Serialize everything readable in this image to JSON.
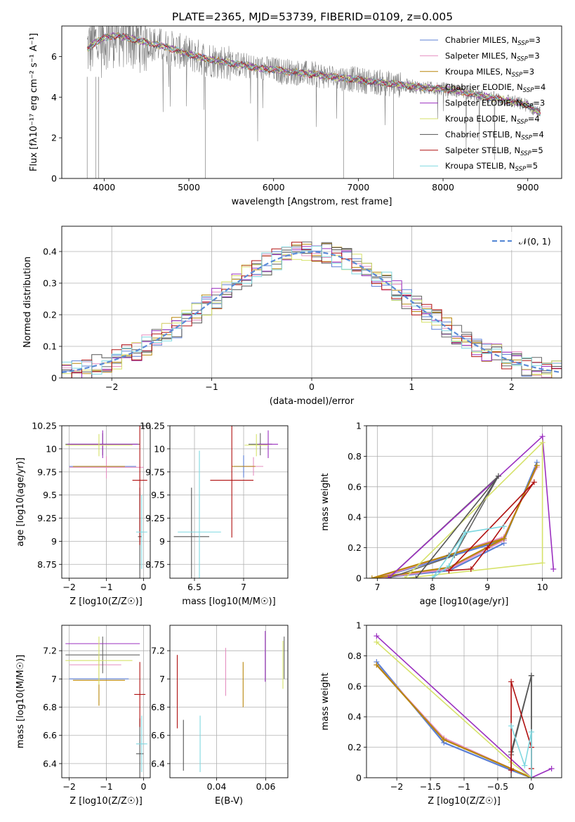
{
  "figure_title": "PLATE=2365, MJD=53739, FIBERID=0109, z=0.005",
  "colors": [
    "#5b7fd6",
    "#e58fc1",
    "#b8860b",
    "#666666",
    "#9b30c0",
    "#d6e26a",
    "#555555",
    "#b01010",
    "#7fd8e0"
  ],
  "chart_data": [
    {
      "id": "spectrum",
      "type": "line",
      "title": "PLATE=2365, MJD=53739, FIBERID=0109, z=0.005",
      "xlabel": "wavelength [Angstrom, rest frame]",
      "ylabel": "Flux [fλ10⁻¹⁷ erg cm⁻² s⁻¹ A⁻¹]",
      "xlim": [
        3500,
        9400
      ],
      "ylim": [
        0,
        7.5
      ],
      "xticks": [
        4000,
        5000,
        6000,
        7000,
        8000,
        9000
      ],
      "yticks": [
        0,
        2,
        4,
        6
      ],
      "grid": false,
      "legend_position": "top-right",
      "data_continuum": {
        "x": [
          3800,
          3900,
          4000,
          4100,
          4200,
          4400,
          4600,
          4800,
          5000,
          5200,
          5400,
          5600,
          5800,
          6000,
          6200,
          6400,
          6600,
          6800,
          7000,
          7200,
          7400,
          7600,
          7800,
          8000,
          8200,
          8400,
          8600,
          8800,
          9000,
          9150
        ],
        "y": [
          6.4,
          6.7,
          6.9,
          7.0,
          7.0,
          6.8,
          6.6,
          6.4,
          6.1,
          5.9,
          5.75,
          5.6,
          5.45,
          5.35,
          5.25,
          5.15,
          5.05,
          4.95,
          4.85,
          4.75,
          4.65,
          4.55,
          4.45,
          4.4,
          4.3,
          4.1,
          3.95,
          3.8,
          3.6,
          3.2
        ]
      },
      "series": [
        {
          "name": "Chabrier MILES, N_SSP=3"
        },
        {
          "name": "Salpeter MILES, N_SSP=3"
        },
        {
          "name": "Kroupa MILES, N_SSP=3"
        },
        {
          "name": "Chabrier ELODIE, N_SSP=4"
        },
        {
          "name": "Salpeter ELODIE, N_SSP=3"
        },
        {
          "name": "Kroupa ELODIE, N_SSP=4"
        },
        {
          "name": "Chabrier STELIB, N_SSP=4"
        },
        {
          "name": "Salpeter STELIB, N_SSP=5"
        },
        {
          "name": "Kroupa STELIB, N_SSP=5"
        }
      ]
    },
    {
      "id": "residuals",
      "type": "line",
      "xlabel": "(data-model)/error",
      "ylabel": "Normed distribution",
      "xlim": [
        -2.5,
        2.5
      ],
      "ylim": [
        0,
        0.48
      ],
      "xticks": [
        -2,
        -1,
        0,
        1,
        2
      ],
      "yticks": [
        0.0,
        0.1,
        0.2,
        0.3,
        0.4
      ],
      "grid": true,
      "legend_position": "top-right",
      "gaussian_label": "𝒩(0, 1)",
      "bin_width": 0.1
    },
    {
      "id": "age_vs_Z",
      "type": "scatter",
      "xlabel": "Z [log10(Z/Z☉)]",
      "ylabel": "age  [log10(age/yr)]",
      "xlim": [
        -2.2,
        0.18
      ],
      "ylim": [
        8.6,
        10.25
      ],
      "xticks": [
        -2,
        -1,
        0
      ],
      "yticks": [
        8.75,
        9.0,
        9.25,
        9.5,
        9.75,
        10.0,
        10.25
      ],
      "grid": true,
      "points": [
        {
          "x": -1.1,
          "xerr": 0.9,
          "y": 9.81,
          "yerr": 0.0,
          "c": 0
        },
        {
          "x": -1.0,
          "xerr": 1.0,
          "y": 9.8,
          "yerr": 0.12,
          "c": 1
        },
        {
          "x": -1.2,
          "xerr": 0.7,
          "y": 9.81,
          "yerr": 0.0,
          "c": 2
        },
        {
          "x": -1.1,
          "xerr": 1.0,
          "y": 10.05,
          "yerr": 0.12,
          "c": 3
        },
        {
          "x": -1.1,
          "xerr": 0.95,
          "y": 10.05,
          "yerr": 0.15,
          "c": 4
        },
        {
          "x": -1.2,
          "xerr": 0.9,
          "y": 10.04,
          "yerr": 0.12,
          "c": 5
        },
        {
          "x": -0.1,
          "xerr": 0.05,
          "y": 9.05,
          "yerr": 0.53,
          "c": 6
        },
        {
          "x": -0.1,
          "xerr": 0.2,
          "y": 9.66,
          "yerr": 0.7,
          "c": 7
        },
        {
          "x": -0.05,
          "xerr": 0.15,
          "y": 9.1,
          "yerr": 0.4,
          "c": 8
        }
      ]
    },
    {
      "id": "age_vs_mass",
      "type": "scatter",
      "xlabel": "mass [log10(M/M☉)]",
      "ylabel": "",
      "xlim": [
        6.25,
        7.45
      ],
      "ylim": [
        8.6,
        10.25
      ],
      "xticks": [
        6.5,
        7.0
      ],
      "yticks": [
        8.75,
        9.0,
        9.25,
        9.5,
        9.75,
        10.0,
        10.25
      ],
      "grid": true,
      "points": [
        {
          "x": 7.0,
          "xerr": 0.1,
          "y": 9.81,
          "yerr": 0.12,
          "c": 0
        },
        {
          "x": 7.1,
          "xerr": 0.1,
          "y": 9.81,
          "yerr": 0.1,
          "c": 1
        },
        {
          "x": 7.0,
          "xerr": 0.12,
          "y": 9.81,
          "yerr": 0.0,
          "c": 2
        },
        {
          "x": 7.17,
          "xerr": 0.12,
          "y": 10.05,
          "yerr": 0.12,
          "c": 3
        },
        {
          "x": 7.25,
          "xerr": 0.1,
          "y": 10.05,
          "yerr": 0.15,
          "c": 4
        },
        {
          "x": 7.13,
          "xerr": 0.12,
          "y": 10.04,
          "yerr": 0.12,
          "c": 5
        },
        {
          "x": 6.47,
          "xerr": 0.18,
          "y": 9.05,
          "yerr": 0.53,
          "c": 6
        },
        {
          "x": 6.88,
          "xerr": 0.22,
          "y": 9.66,
          "yerr": 0.62,
          "c": 7
        },
        {
          "x": 6.55,
          "xerr": 0.22,
          "y": 9.1,
          "yerr": 0.88,
          "c": 8
        }
      ]
    },
    {
      "id": "mass_weight_vs_age",
      "type": "line",
      "xlabel": "age  [log10(age/yr)]",
      "ylabel": "mass weight",
      "xlim": [
        6.8,
        10.35
      ],
      "ylim": [
        0,
        1.0
      ],
      "xticks": [
        7,
        8,
        9,
        10
      ],
      "yticks": [
        0.0,
        0.2,
        0.4,
        0.6,
        0.8,
        1.0
      ],
      "grid": true,
      "series": [
        {
          "c": 0,
          "x": [
            9.3,
            8.3,
            7.0,
            9.3,
            9.9
          ],
          "y": [
            0.23,
            0.05,
            0.0,
            0.25,
            0.76
          ]
        },
        {
          "c": 1,
          "x": [
            9.3,
            8.3,
            7.0,
            9.3,
            9.9
          ],
          "y": [
            0.25,
            0.06,
            0.0,
            0.27,
            0.73
          ]
        },
        {
          "c": 2,
          "x": [
            9.3,
            8.3,
            6.9,
            9.3,
            9.9
          ],
          "y": [
            0.26,
            0.07,
            0.0,
            0.26,
            0.74
          ]
        },
        {
          "c": 3,
          "x": [
            7.2,
            9.2,
            8.4,
            7.2
          ],
          "y": [
            0.0,
            0.67,
            0.15,
            0.0
          ]
        },
        {
          "c": 4,
          "x": [
            7.2,
            10.0,
            10.2
          ],
          "y": [
            0.0,
            0.93,
            0.06
          ]
        },
        {
          "c": 5,
          "x": [
            7.5,
            10.0,
            10.0,
            7.5
          ],
          "y": [
            0.0,
            0.89,
            0.1,
            0.0
          ]
        },
        {
          "c": 6,
          "x": [
            7.7,
            9.2,
            8.3
          ],
          "y": [
            0.0,
            0.67,
            0.15
          ]
        },
        {
          "c": 7,
          "x": [
            8.3,
            8.7,
            9.0,
            9.85,
            8.3
          ],
          "y": [
            0.05,
            0.06,
            0.2,
            0.63,
            0.05
          ]
        },
        {
          "c": 8,
          "x": [
            8.0,
            8.3,
            8.6,
            9.3,
            8.6,
            8.0
          ],
          "y": [
            0.0,
            0.08,
            0.3,
            0.34,
            0.3,
            0.0
          ]
        }
      ]
    },
    {
      "id": "mass_vs_Z",
      "type": "scatter",
      "xlabel": "Z [log10(Z/Z☉)]",
      "ylabel": "mass [log10(M/M☉)]",
      "xlim": [
        -2.2,
        0.18
      ],
      "ylim": [
        6.3,
        7.38
      ],
      "xticks": [
        -2,
        -1,
        0
      ],
      "yticks": [
        6.4,
        6.6,
        6.8,
        7.0,
        7.2
      ],
      "grid": true,
      "points": [
        {
          "x": -1.2,
          "xerr": 0.8,
          "y": 7.0,
          "yerr": 0.0,
          "c": 0
        },
        {
          "x": -1.3,
          "xerr": 0.7,
          "y": 7.1,
          "yerr": 0.0,
          "c": 1
        },
        {
          "x": -1.2,
          "xerr": 0.7,
          "y": 6.99,
          "yerr": 0.18,
          "c": 2
        },
        {
          "x": -1.1,
          "xerr": 1.0,
          "y": 7.17,
          "yerr": 0.13,
          "c": 3
        },
        {
          "x": -1.1,
          "xerr": 1.0,
          "y": 7.25,
          "yerr": 0.0,
          "c": 4
        },
        {
          "x": -1.2,
          "xerr": 0.9,
          "y": 7.13,
          "yerr": 0.17,
          "c": 5
        },
        {
          "x": -0.1,
          "xerr": 0.1,
          "y": 6.47,
          "yerr": 0.25,
          "c": 6
        },
        {
          "x": -0.1,
          "xerr": 0.15,
          "y": 6.89,
          "yerr": 0.23,
          "c": 7
        },
        {
          "x": -0.05,
          "xerr": 0.15,
          "y": 6.54,
          "yerr": 0.2,
          "c": 8
        }
      ]
    },
    {
      "id": "mass_vs_EBV",
      "type": "scatter",
      "xlabel": "E(B-V)",
      "ylabel": "",
      "xlim": [
        0.021,
        0.069
      ],
      "ylim": [
        6.3,
        7.38
      ],
      "xticks": [
        0.04,
        0.06
      ],
      "yticks": [
        6.4,
        6.6,
        6.8,
        7.0,
        7.2
      ],
      "grid": true,
      "points": [
        {
          "x": 0.0437,
          "y": 7.05,
          "yerr": 0.17,
          "c": 1
        },
        {
          "x": 0.0508,
          "y": 6.96,
          "yerr": 0.16,
          "c": 2
        },
        {
          "x": 0.0675,
          "y": 7.15,
          "yerr": 0.15,
          "c": 3
        },
        {
          "x": 0.0598,
          "y": 7.16,
          "yerr": 0.18,
          "c": 4
        },
        {
          "x": 0.067,
          "y": 7.1,
          "yerr": 0.17,
          "c": 5
        },
        {
          "x": 0.0265,
          "y": 6.53,
          "yerr": 0.18,
          "c": 6
        },
        {
          "x": 0.024,
          "y": 6.91,
          "yerr": 0.26,
          "c": 7
        },
        {
          "x": 0.0333,
          "y": 6.54,
          "yerr": 0.2,
          "c": 8
        }
      ]
    },
    {
      "id": "mass_weight_vs_Z",
      "type": "line",
      "xlabel": "Z [log10(Z/Z☉)]",
      "ylabel": "mass weight",
      "xlim": [
        -2.45,
        0.45
      ],
      "ylim": [
        0,
        1.0
      ],
      "xticks": [
        -2.0,
        -1.5,
        -1.0,
        -0.5,
        0.0
      ],
      "yticks": [
        0.0,
        0.2,
        0.4,
        0.6,
        0.8,
        1.0
      ],
      "grid": true,
      "series": [
        {
          "c": 0,
          "x": [
            -2.3,
            -1.3,
            -0.3,
            0.0
          ],
          "y": [
            0.76,
            0.23,
            0.05,
            0.0
          ]
        },
        {
          "c": 1,
          "x": [
            -2.3,
            -1.3,
            -0.3,
            0.0
          ],
          "y": [
            0.74,
            0.26,
            0.06,
            0.0
          ]
        },
        {
          "c": 2,
          "x": [
            -2.3,
            -1.3,
            -0.3,
            0.0
          ],
          "y": [
            0.74,
            0.25,
            0.06,
            0.0
          ]
        },
        {
          "c": 3,
          "x": [
            -0.3,
            -0.3,
            0.0,
            0.0
          ],
          "y": [
            0.0,
            0.15,
            0.67,
            0.0
          ]
        },
        {
          "c": 4,
          "x": [
            -2.3,
            0.0,
            0.3
          ],
          "y": [
            0.93,
            0.0,
            0.06
          ]
        },
        {
          "c": 5,
          "x": [
            -2.3,
            -0.3,
            0.0
          ],
          "y": [
            0.89,
            0.1,
            0.0
          ]
        },
        {
          "c": 6,
          "x": [
            -0.3,
            0.0,
            0.0
          ],
          "y": [
            0.17,
            0.67,
            0.0
          ]
        },
        {
          "c": 7,
          "x": [
            -0.3,
            -0.3,
            0.0,
            0.0
          ],
          "y": [
            0.05,
            0.63,
            0.2,
            0.06
          ]
        },
        {
          "c": 8,
          "x": [
            -0.3,
            -0.1,
            0.0,
            0.0
          ],
          "y": [
            0.34,
            0.08,
            0.3,
            0.0
          ]
        }
      ]
    }
  ]
}
